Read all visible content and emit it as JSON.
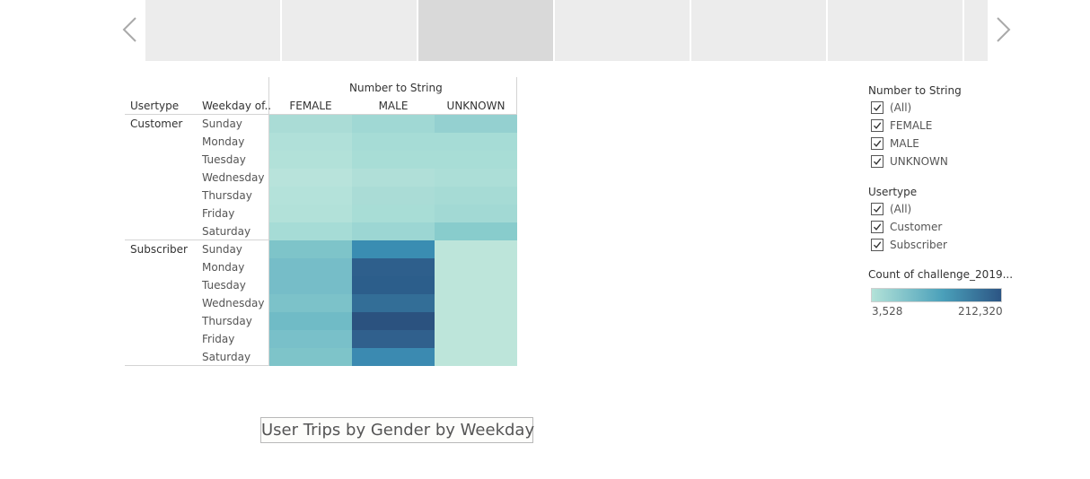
{
  "nav": {
    "prev_icon": "chevron-left-icon",
    "next_icon": "chevron-right-icon"
  },
  "story_points": 7,
  "active_story_point": 2,
  "crosstab": {
    "column_group_header": "Number to String",
    "row_header_1": "Usertype",
    "row_header_2": "Weekday of..",
    "columns": [
      "FEMALE",
      "MALE",
      "UNKNOWN"
    ],
    "groups": [
      {
        "usertype": "Customer",
        "days": [
          "Sunday",
          "Monday",
          "Tuesday",
          "Wednesday",
          "Thursday",
          "Friday",
          "Saturday"
        ],
        "colors": [
          [
            "#aadcd6",
            "#a0d8d4",
            "#94d0d0"
          ],
          [
            "#b0e0d9",
            "#a6dcd6",
            "#a6dcd6"
          ],
          [
            "#b2e1d9",
            "#a8ddd6",
            "#a8ddd6"
          ],
          [
            "#b8e3db",
            "#b0dfd8",
            "#acded7"
          ],
          [
            "#b4e2da",
            "#aadcd6",
            "#a6dbd5"
          ],
          [
            "#b2e1d9",
            "#a8ddd6",
            "#a2d9d4"
          ],
          [
            "#a6dcd6",
            "#9cd6d3",
            "#88cccc"
          ]
        ]
      },
      {
        "usertype": "Subscriber",
        "days": [
          "Sunday",
          "Monday",
          "Tuesday",
          "Wednesday",
          "Thursday",
          "Friday",
          "Saturday"
        ],
        "colors": [
          [
            "#7ec4c9",
            "#3a8db2",
            "#bde5da"
          ],
          [
            "#76bdc8",
            "#2e5f8c",
            "#bde5da"
          ],
          [
            "#76bdc8",
            "#2c5e8b",
            "#bde5da"
          ],
          [
            "#7cc2c9",
            "#336e97",
            "#bde5da"
          ],
          [
            "#70bbc6",
            "#2b527f",
            "#bde5da"
          ],
          [
            "#79c0c9",
            "#30608d",
            "#bde5da"
          ],
          [
            "#7ec4c9",
            "#3b8ab1",
            "#bde5da"
          ]
        ]
      }
    ]
  },
  "legend": {
    "filter1": {
      "title": "Number to String",
      "items": [
        "(All)",
        "FEMALE",
        "MALE",
        "UNKNOWN"
      ]
    },
    "filter2": {
      "title": "Usertype",
      "items": [
        "(All)",
        "Customer",
        "Subscriber"
      ]
    },
    "color": {
      "title": "Count of challenge_2019...",
      "min": "3,528",
      "max": "212,320",
      "start_color": "#b3e2d8",
      "mid_color": "#4aa0ba",
      "end_color": "#2c5584"
    }
  },
  "caption": "User Trips by Gender by Weekday"
}
